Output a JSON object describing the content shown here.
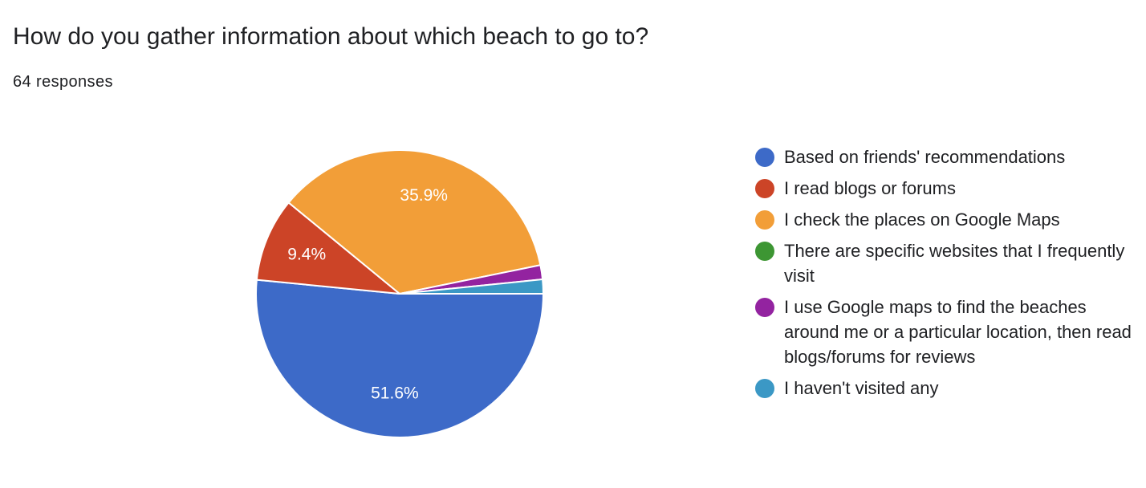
{
  "header": {
    "title": "How do you gather information about which beach to go to?",
    "responses": "64 responses"
  },
  "chart_data": {
    "type": "pie",
    "title": "How do you gather information about which beach to go to?",
    "total_responses": 64,
    "legend_position": "right",
    "slices": [
      {
        "label": "Based on friends' recommendations",
        "value": 51.6,
        "display": "51.6%",
        "color": "#3d6ac8"
      },
      {
        "label": "I read blogs or forums",
        "value": 9.4,
        "display": "9.4%",
        "color": "#cc4427"
      },
      {
        "label": "I check the places on Google Maps",
        "value": 35.9,
        "display": "35.9%",
        "color": "#f29e38"
      },
      {
        "label": "There are specific websites that I frequently visit",
        "value": 0,
        "display": "",
        "color": "#3d9633"
      },
      {
        "label": "I use Google maps to find the beaches around me or a particular location, then read blogs/forums for reviews",
        "value": 1.6,
        "display": "",
        "color": "#9323a0"
      },
      {
        "label": "I haven't visited any",
        "value": 1.6,
        "display": "",
        "color": "#3b98c5"
      }
    ]
  }
}
